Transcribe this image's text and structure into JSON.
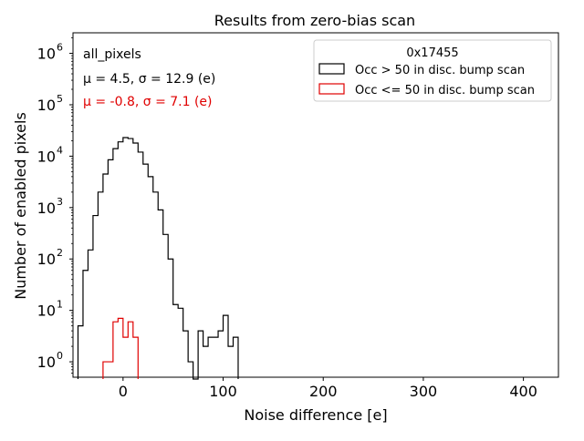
{
  "chart_data": {
    "type": "histogram",
    "title": "Results from zero-bias scan",
    "xlabel": "Noise difference [e]",
    "ylabel": "Number of enabled pixels",
    "xlim": [
      -50,
      435
    ],
    "ylim_log10": [
      -0.3,
      6.4
    ],
    "yscale": "log",
    "xticks": [
      0,
      100,
      200,
      300,
      400
    ],
    "xtick_labels": [
      "0",
      "100",
      "200",
      "300",
      "400"
    ],
    "yticks": [
      0,
      1,
      2,
      3,
      4,
      5,
      6
    ],
    "ytick_labels": [
      "10",
      "10",
      "10",
      "10",
      "10",
      "10",
      "10"
    ],
    "ytick_exponents": [
      "0",
      "1",
      "2",
      "3",
      "4",
      "5",
      "6"
    ],
    "bin_width": 5,
    "annotations": {
      "label": "all_pixels",
      "stats_black": "μ = 4.5, σ = 12.9 (e)",
      "stats_red": "μ = -0.8, σ = 7.1 (e)"
    },
    "legend": {
      "title": "0x17455",
      "position": "top-right",
      "entries": [
        "Occ > 50 in disc. bump scan",
        "Occ <= 50 in disc. bump scan"
      ]
    },
    "series": [
      {
        "name": "Occ > 50 in disc. bump scan",
        "color": "#000000",
        "bins": [
          [
            -45,
            5
          ],
          [
            -40,
            60
          ],
          [
            -35,
            150
          ],
          [
            -30,
            700
          ],
          [
            -25,
            2000
          ],
          [
            -20,
            4500
          ],
          [
            -15,
            8500
          ],
          [
            -10,
            14000
          ],
          [
            -5,
            19000
          ],
          [
            0,
            23000
          ],
          [
            5,
            22000
          ],
          [
            10,
            18000
          ],
          [
            15,
            12000
          ],
          [
            20,
            7000
          ],
          [
            25,
            4000
          ],
          [
            30,
            2000
          ],
          [
            35,
            900
          ],
          [
            40,
            300
          ],
          [
            45,
            100
          ],
          [
            50,
            13
          ],
          [
            55,
            11
          ],
          [
            60,
            4
          ],
          [
            65,
            1
          ],
          [
            70,
            0
          ],
          [
            75,
            4
          ],
          [
            80,
            2
          ],
          [
            85,
            3
          ],
          [
            90,
            3
          ],
          [
            95,
            4
          ],
          [
            100,
            8
          ],
          [
            105,
            2
          ],
          [
            110,
            3
          ]
        ]
      },
      {
        "name": "Occ <= 50 in disc. bump scan",
        "color": "#e00000",
        "bins": [
          [
            -20,
            1
          ],
          [
            -15,
            1
          ],
          [
            -10,
            6
          ],
          [
            -5,
            7
          ],
          [
            0,
            3
          ],
          [
            5,
            6
          ],
          [
            10,
            3
          ]
        ]
      }
    ]
  }
}
